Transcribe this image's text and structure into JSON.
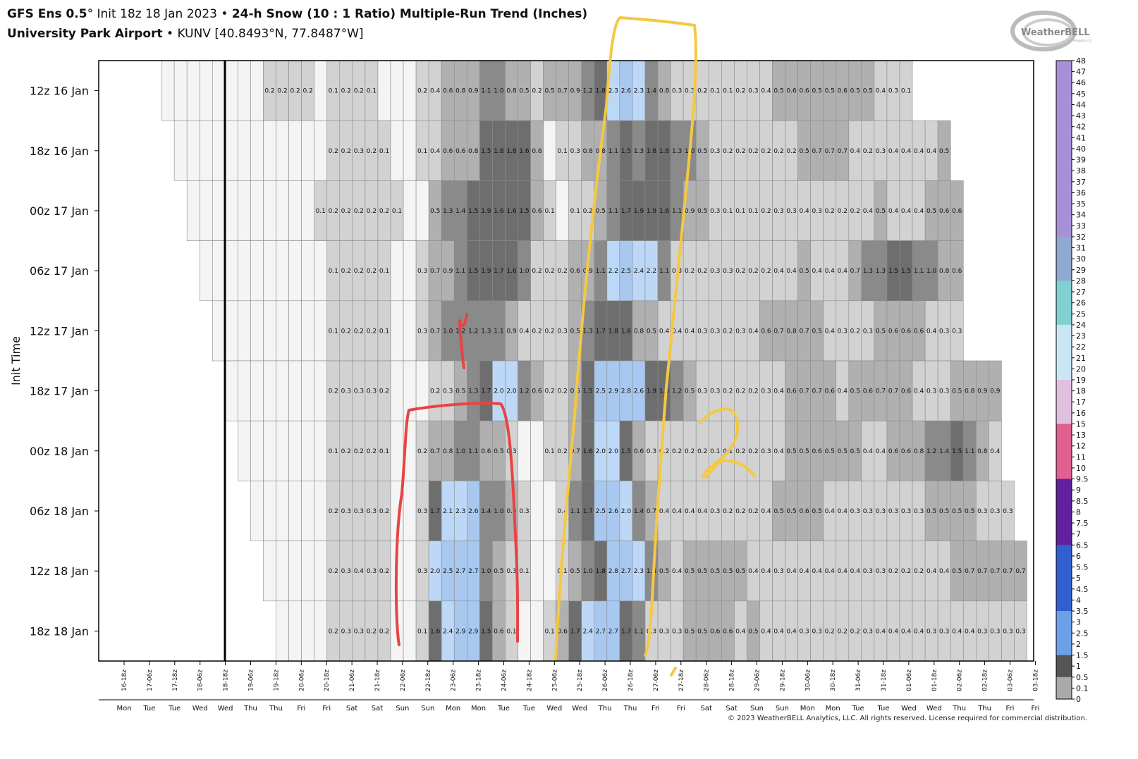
{
  "header": {
    "model": "GFS Ens 0.5",
    "degree": "°",
    "init": " Init 18z 18 Jan 2023",
    "bullet": " • ",
    "product": "24-h Snow (10 : 1 Ratio) Multiple-Run Trend (Inches)",
    "station": "University Park Airport",
    "station_info": " • KUNV [40.8493°N, 77.8487°W]"
  },
  "logo": {
    "text": "WeatherBELL",
    "sub": "Analytics LLC"
  },
  "copyright": "© 2023 WeatherBELL Analytics, LLC. All rights reserved. License required for commercial distribution.",
  "chart_data": {
    "type": "heatmap",
    "ylabel": "Init Time",
    "rows": [
      "12z 16 Jan",
      "18z 16 Jan",
      "00z 17 Jan",
      "06z 17 Jan",
      "12z 17 Jan",
      "18z 17 Jan",
      "00z 18 Jan",
      "06z 18 Jan",
      "12z 18 Jan",
      "18z 18 Jan"
    ],
    "x_ticks": [
      "16-18z",
      "17-06z",
      "17-18z",
      "18-06z",
      "18-18z",
      "19-06z",
      "19-18z",
      "20-06z",
      "20-18z",
      "21-06z",
      "21-18z",
      "22-06z",
      "22-18z",
      "23-06z",
      "23-18z",
      "24-06z",
      "24-18z",
      "25-06z",
      "25-18z",
      "26-06z",
      "26-18z",
      "27-06z",
      "27-18z",
      "28-06z",
      "28-18z",
      "29-06z",
      "29-18z",
      "30-06z",
      "30-18z",
      "31-06z",
      "31-18z",
      "01-06z",
      "01-18z",
      "02-06z",
      "02-18z",
      "03-06z",
      "03-18z"
    ],
    "x_days": [
      "Mon",
      "Tue",
      "Tue",
      "Wed",
      "Wed",
      "Thu",
      "Thu",
      "Fri",
      "Fri",
      "Sat",
      "Sat",
      "Sun",
      "Sun",
      "Mon",
      "Mon",
      "Tue",
      "Tue",
      "Wed",
      "Wed",
      "Thu",
      "Thu",
      "Fri",
      "Fri",
      "Sat",
      "Sat",
      "Sun",
      "Sun",
      "Mon",
      "Mon",
      "Tue",
      "Tue",
      "Wed",
      "Wed",
      "Thu",
      "Thu",
      "Fri",
      "Fri"
    ],
    "row_start_step": [
      2,
      3,
      4,
      5,
      6,
      7,
      8,
      9,
      10,
      11
    ],
    "values": [
      [
        null,
        null,
        null,
        null,
        null,
        null,
        null,
        null,
        0.2,
        0.2,
        0.2,
        0.2,
        null,
        0.1,
        0.2,
        0.2,
        0.1,
        null,
        null,
        null,
        0.2,
        0.4,
        0.6,
        0.8,
        0.9,
        1.1,
        1.0,
        0.8,
        0.5,
        0.2,
        0.5,
        0.7,
        0.9,
        1.2,
        1.8,
        2.3,
        2.6,
        2.3,
        1.4,
        0.8,
        0.3,
        0.3,
        0.2,
        0.1,
        0.1,
        0.2,
        0.3,
        0.4,
        0.5,
        0.6,
        0.6,
        0.5,
        0.5,
        0.6,
        0.5,
        0.5,
        0.4,
        0.3,
        0.1
      ],
      [
        null,
        null,
        null,
        null,
        null,
        null,
        null,
        null,
        null,
        null,
        null,
        null,
        0.2,
        0.2,
        0.3,
        0.2,
        0.1,
        null,
        null,
        0.1,
        0.4,
        0.6,
        0.6,
        0.8,
        1.5,
        1.8,
        1.8,
        1.6,
        0.6,
        null,
        0.1,
        0.3,
        0.8,
        0.8,
        1.1,
        1.5,
        1.3,
        1.8,
        1.8,
        1.3,
        1.0,
        0.5,
        0.3,
        0.2,
        0.2,
        0.2,
        0.2,
        0.2,
        0.2,
        0.5,
        0.7,
        0.7,
        0.7,
        0.4,
        0.2,
        0.3,
        0.4,
        0.4,
        0.4,
        0.4,
        0.5
      ],
      [
        null,
        null,
        null,
        null,
        null,
        null,
        null,
        null,
        null,
        null,
        0.1,
        0.2,
        0.2,
        0.2,
        0.2,
        0.2,
        0.1,
        null,
        null,
        0.5,
        1.3,
        1.4,
        1.5,
        1.9,
        1.6,
        1.6,
        1.5,
        0.6,
        0.1,
        null,
        0.1,
        0.2,
        0.5,
        1.1,
        1.7,
        1.9,
        1.9,
        1.6,
        1.1,
        0.9,
        0.5,
        0.3,
        0.1,
        0.1,
        0.1,
        0.2,
        0.3,
        0.3,
        0.4,
        0.3,
        0.2,
        0.2,
        0.2,
        0.4,
        0.5,
        0.4,
        0.4,
        0.4,
        0.5,
        0.6,
        0.6
      ],
      [
        null,
        null,
        null,
        null,
        null,
        null,
        null,
        null,
        null,
        null,
        0.1,
        0.2,
        0.2,
        0.2,
        0.1,
        null,
        null,
        0.3,
        0.7,
        0.9,
        1.1,
        1.5,
        1.9,
        1.7,
        1.6,
        1.0,
        0.2,
        0.2,
        0.2,
        0.6,
        0.9,
        1.1,
        2.2,
        2.5,
        2.4,
        2.2,
        1.1,
        0.3,
        0.2,
        0.2,
        0.3,
        0.3,
        0.2,
        0.2,
        0.2,
        0.4,
        0.4,
        0.5,
        0.4,
        0.4,
        0.4,
        0.7,
        1.3,
        1.3,
        1.5,
        1.5,
        1.1,
        1.0,
        0.8,
        0.6
      ],
      [
        null,
        null,
        null,
        null,
        null,
        null,
        null,
        null,
        null,
        0.1,
        0.2,
        0.2,
        0.2,
        0.1,
        null,
        null,
        0.3,
        0.7,
        1.0,
        1.2,
        1.2,
        1.3,
        1.1,
        0.9,
        0.4,
        0.2,
        0.2,
        0.3,
        0.5,
        1.3,
        1.7,
        1.8,
        1.6,
        0.8,
        0.5,
        0.4,
        0.4,
        0.4,
        0.3,
        0.3,
        0.2,
        0.3,
        0.4,
        0.6,
        0.7,
        0.8,
        0.7,
        0.5,
        0.4,
        0.3,
        0.2,
        0.3,
        0.5,
        0.6,
        0.6,
        0.6,
        0.4,
        0.3,
        0.3
      ],
      [
        null,
        null,
        null,
        null,
        null,
        null,
        null,
        null,
        0.2,
        0.3,
        0.3,
        0.3,
        0.2,
        null,
        null,
        null,
        0.2,
        0.3,
        0.5,
        1.3,
        1.7,
        2.0,
        2.0,
        1.2,
        0.6,
        0.2,
        0.2,
        0.6,
        1.5,
        2.5,
        2.9,
        2.8,
        2.6,
        1.9,
        1.5,
        1.2,
        0.5,
        0.3,
        0.3,
        0.2,
        0.2,
        0.2,
        0.3,
        0.4,
        0.6,
        0.7,
        0.7,
        0.6,
        0.4,
        0.5,
        0.6,
        0.7,
        0.7,
        0.6,
        0.4,
        0.3,
        0.3,
        0.5,
        0.8,
        0.9,
        0.9
      ],
      [
        null,
        null,
        null,
        null,
        null,
        null,
        null,
        0.1,
        0.2,
        0.2,
        0.2,
        0.1,
        null,
        null,
        0.2,
        0.7,
        0.8,
        1.0,
        1.1,
        0.6,
        0.5,
        0.3,
        null,
        null,
        0.1,
        0.2,
        0.7,
        1.6,
        2.0,
        2.0,
        1.5,
        0.6,
        0.3,
        0.2,
        0.2,
        0.2,
        0.2,
        0.1,
        0.1,
        0.2,
        0.2,
        0.3,
        0.4,
        0.5,
        0.5,
        0.6,
        0.5,
        0.5,
        0.5,
        0.4,
        0.4,
        0.6,
        0.6,
        0.8,
        1.2,
        1.4,
        1.5,
        1.1,
        0.8,
        0.4
      ],
      [
        null,
        null,
        null,
        null,
        null,
        null,
        0.2,
        0.3,
        0.3,
        0.3,
        0.2,
        null,
        null,
        0.3,
        1.7,
        2.1,
        2.3,
        2.6,
        1.4,
        1.0,
        0.8,
        0.3,
        null,
        null,
        0.4,
        1.1,
        1.7,
        2.5,
        2.6,
        2.0,
        1.4,
        0.7,
        0.4,
        0.4,
        0.4,
        0.4,
        0.3,
        0.2,
        0.2,
        0.2,
        0.4,
        0.5,
        0.5,
        0.6,
        0.5,
        0.4,
        0.4,
        0.3,
        0.3,
        0.3,
        0.3,
        0.3,
        0.3,
        0.5,
        0.5,
        0.5,
        0.5,
        0.3,
        0.3,
        0.3
      ],
      [
        null,
        null,
        null,
        null,
        null,
        0.2,
        0.3,
        0.4,
        0.3,
        0.2,
        null,
        null,
        0.3,
        2.0,
        2.5,
        2.7,
        2.7,
        1.0,
        0.5,
        0.3,
        0.1,
        null,
        null,
        0.1,
        0.5,
        1.0,
        1.8,
        2.8,
        2.7,
        2.3,
        1.4,
        0.5,
        0.4,
        0.5,
        0.5,
        0.5,
        0.5,
        0.5,
        0.4,
        0.4,
        0.3,
        0.4,
        0.4,
        0.4,
        0.4,
        0.4,
        0.4,
        0.3,
        0.3,
        0.2,
        0.2,
        0.2,
        0.4,
        0.4,
        0.5,
        0.7,
        0.7,
        0.7,
        0.7,
        0.7,
        0.8,
        0.7
      ],
      [
        null,
        null,
        null,
        null,
        0.2,
        0.3,
        0.3,
        0.2,
        0.2,
        null,
        null,
        0.1,
        1.6,
        2.4,
        2.9,
        2.9,
        1.5,
        0.6,
        0.1,
        null,
        null,
        0.1,
        0.6,
        1.7,
        2.4,
        2.7,
        2.7,
        1.7,
        1.1,
        0.3,
        0.3,
        0.3,
        0.5,
        0.5,
        0.6,
        0.6,
        0.4,
        0.5,
        0.4,
        0.4,
        0.4,
        0.3,
        0.3,
        0.2,
        0.2,
        0.2,
        0.3,
        0.4,
        0.4,
        0.4,
        0.4,
        0.3,
        0.3,
        0.4,
        0.4,
        0.3,
        0.3,
        0.3,
        0.3,
        0.3,
        0.3
      ]
    ],
    "colorbar_labels": [
      "48",
      "47",
      "46",
      "45",
      "44",
      "43",
      "42",
      "41",
      "40",
      "39",
      "38",
      "37",
      "36",
      "35",
      "34",
      "33",
      "32",
      "31",
      "30",
      "29",
      "28",
      "27",
      "26",
      "25",
      "24",
      "23",
      "22",
      "21",
      "20",
      "19",
      "18",
      "17",
      "16",
      "15",
      "13",
      "12",
      "11",
      "10",
      "9.5",
      "9",
      "8.5",
      "8",
      "7.5",
      "7",
      "6.5",
      "6",
      "5.5",
      "5",
      "4.5",
      "4",
      "3.5",
      "3",
      "2.5",
      "2",
      "1.5",
      "1",
      "0.5",
      "0.1",
      "0"
    ]
  },
  "annotations": {
    "number_label": "2"
  }
}
